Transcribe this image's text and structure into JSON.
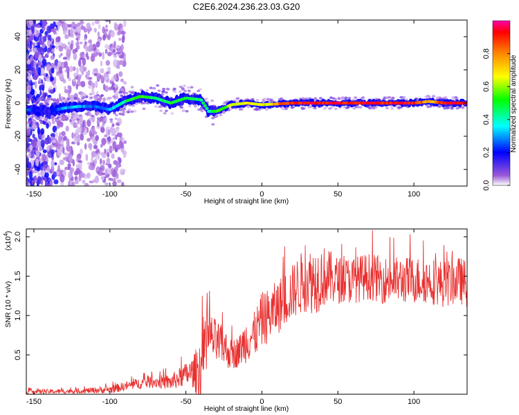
{
  "title": "C2E6.2024.236.23.03.G20",
  "chart_data": [
    {
      "type": "heatmap",
      "xlabel": "Height of straight line (km)",
      "ylabel": "Frequency (Hz)",
      "xlim": [
        -155,
        135
      ],
      "ylim": [
        -50,
        50
      ],
      "xticks": [
        -150,
        -100,
        -50,
        0,
        50,
        100
      ],
      "yticks": [
        -40,
        -20,
        0,
        20,
        40
      ],
      "colorbar": {
        "label": "Normalized spectral amplitude",
        "range": [
          0,
          1
        ],
        "ticks": [
          "0.0",
          "0.2",
          "0.4",
          "0.6",
          "0.8"
        ],
        "tick_values": [
          0.0,
          0.2,
          0.4,
          0.6,
          0.8
        ],
        "colors": [
          "#ffffff",
          "#9b59d9",
          "#0000ff",
          "#00ffff",
          "#00ff00",
          "#ffff00",
          "#ff8800",
          "#ff0000",
          "#ff00aa"
        ]
      },
      "ridge": {
        "x": [
          -155,
          -140,
          -130,
          -120,
          -110,
          -100,
          -90,
          -80,
          -70,
          -60,
          -50,
          -40,
          -35,
          -30,
          -20,
          -10,
          0,
          20,
          50,
          80,
          100,
          110,
          120,
          135
        ],
        "y": [
          -4,
          -5,
          -3,
          -2,
          -2,
          -4,
          1,
          4,
          3,
          0,
          3,
          2,
          -5,
          -5,
          -1,
          0,
          -1,
          0,
          0,
          0,
          0,
          1,
          0,
          0
        ],
        "amplitude": [
          0.3,
          0.2,
          0.35,
          0.35,
          0.3,
          0.35,
          0.45,
          0.55,
          0.45,
          0.5,
          0.5,
          0.45,
          0.45,
          0.5,
          0.6,
          0.65,
          0.6,
          0.9,
          0.9,
          0.9,
          0.9,
          0.7,
          0.9,
          0.9
        ]
      }
    },
    {
      "type": "line",
      "xlabel": "Height of straight line (km)",
      "ylabel": "SNR (10 * v/v)",
      "multiplier": "(x10",
      "multiplier_exp": "4",
      "multiplier_close": ")",
      "xlim": [
        -155,
        135
      ],
      "ylim": [
        0,
        2.1
      ],
      "xticks": [
        -150,
        -100,
        -50,
        0,
        50,
        100
      ],
      "yticks": [
        "0.5",
        "1.0",
        "1.5",
        "2.0"
      ],
      "ytick_values": [
        0.5,
        1.0,
        1.5,
        2.0
      ],
      "color": "#e8302f",
      "envelope": {
        "x": [
          -155,
          -120,
          -100,
          -90,
          -80,
          -70,
          -60,
          -50,
          -45,
          -40,
          -37,
          -35,
          -30,
          -25,
          -20,
          -15,
          -10,
          -5,
          0,
          5,
          10,
          15,
          20,
          25,
          30,
          35,
          40,
          50,
          60,
          70,
          80,
          90,
          100,
          110,
          120,
          130,
          135
        ],
        "mean": [
          0.03,
          0.04,
          0.06,
          0.1,
          0.14,
          0.16,
          0.15,
          0.25,
          0.28,
          0.32,
          0.45,
          0.75,
          0.65,
          0.6,
          0.5,
          0.55,
          0.7,
          0.75,
          0.95,
          1.0,
          1.1,
          1.2,
          1.3,
          1.4,
          1.45,
          1.45,
          1.5,
          1.45,
          1.45,
          1.5,
          1.45,
          1.45,
          1.45,
          1.45,
          1.4,
          1.45,
          1.4
        ],
        "spread": [
          0.03,
          0.03,
          0.05,
          0.06,
          0.07,
          0.08,
          0.1,
          0.15,
          0.2,
          0.5,
          0.4,
          0.3,
          0.3,
          0.25,
          0.2,
          0.2,
          0.3,
          0.3,
          0.35,
          0.35,
          0.35,
          0.35,
          0.35,
          0.4,
          0.4,
          0.45,
          0.4,
          0.3,
          0.3,
          0.3,
          0.3,
          0.3,
          0.3,
          0.3,
          0.3,
          0.3,
          0.3
        ]
      }
    }
  ]
}
